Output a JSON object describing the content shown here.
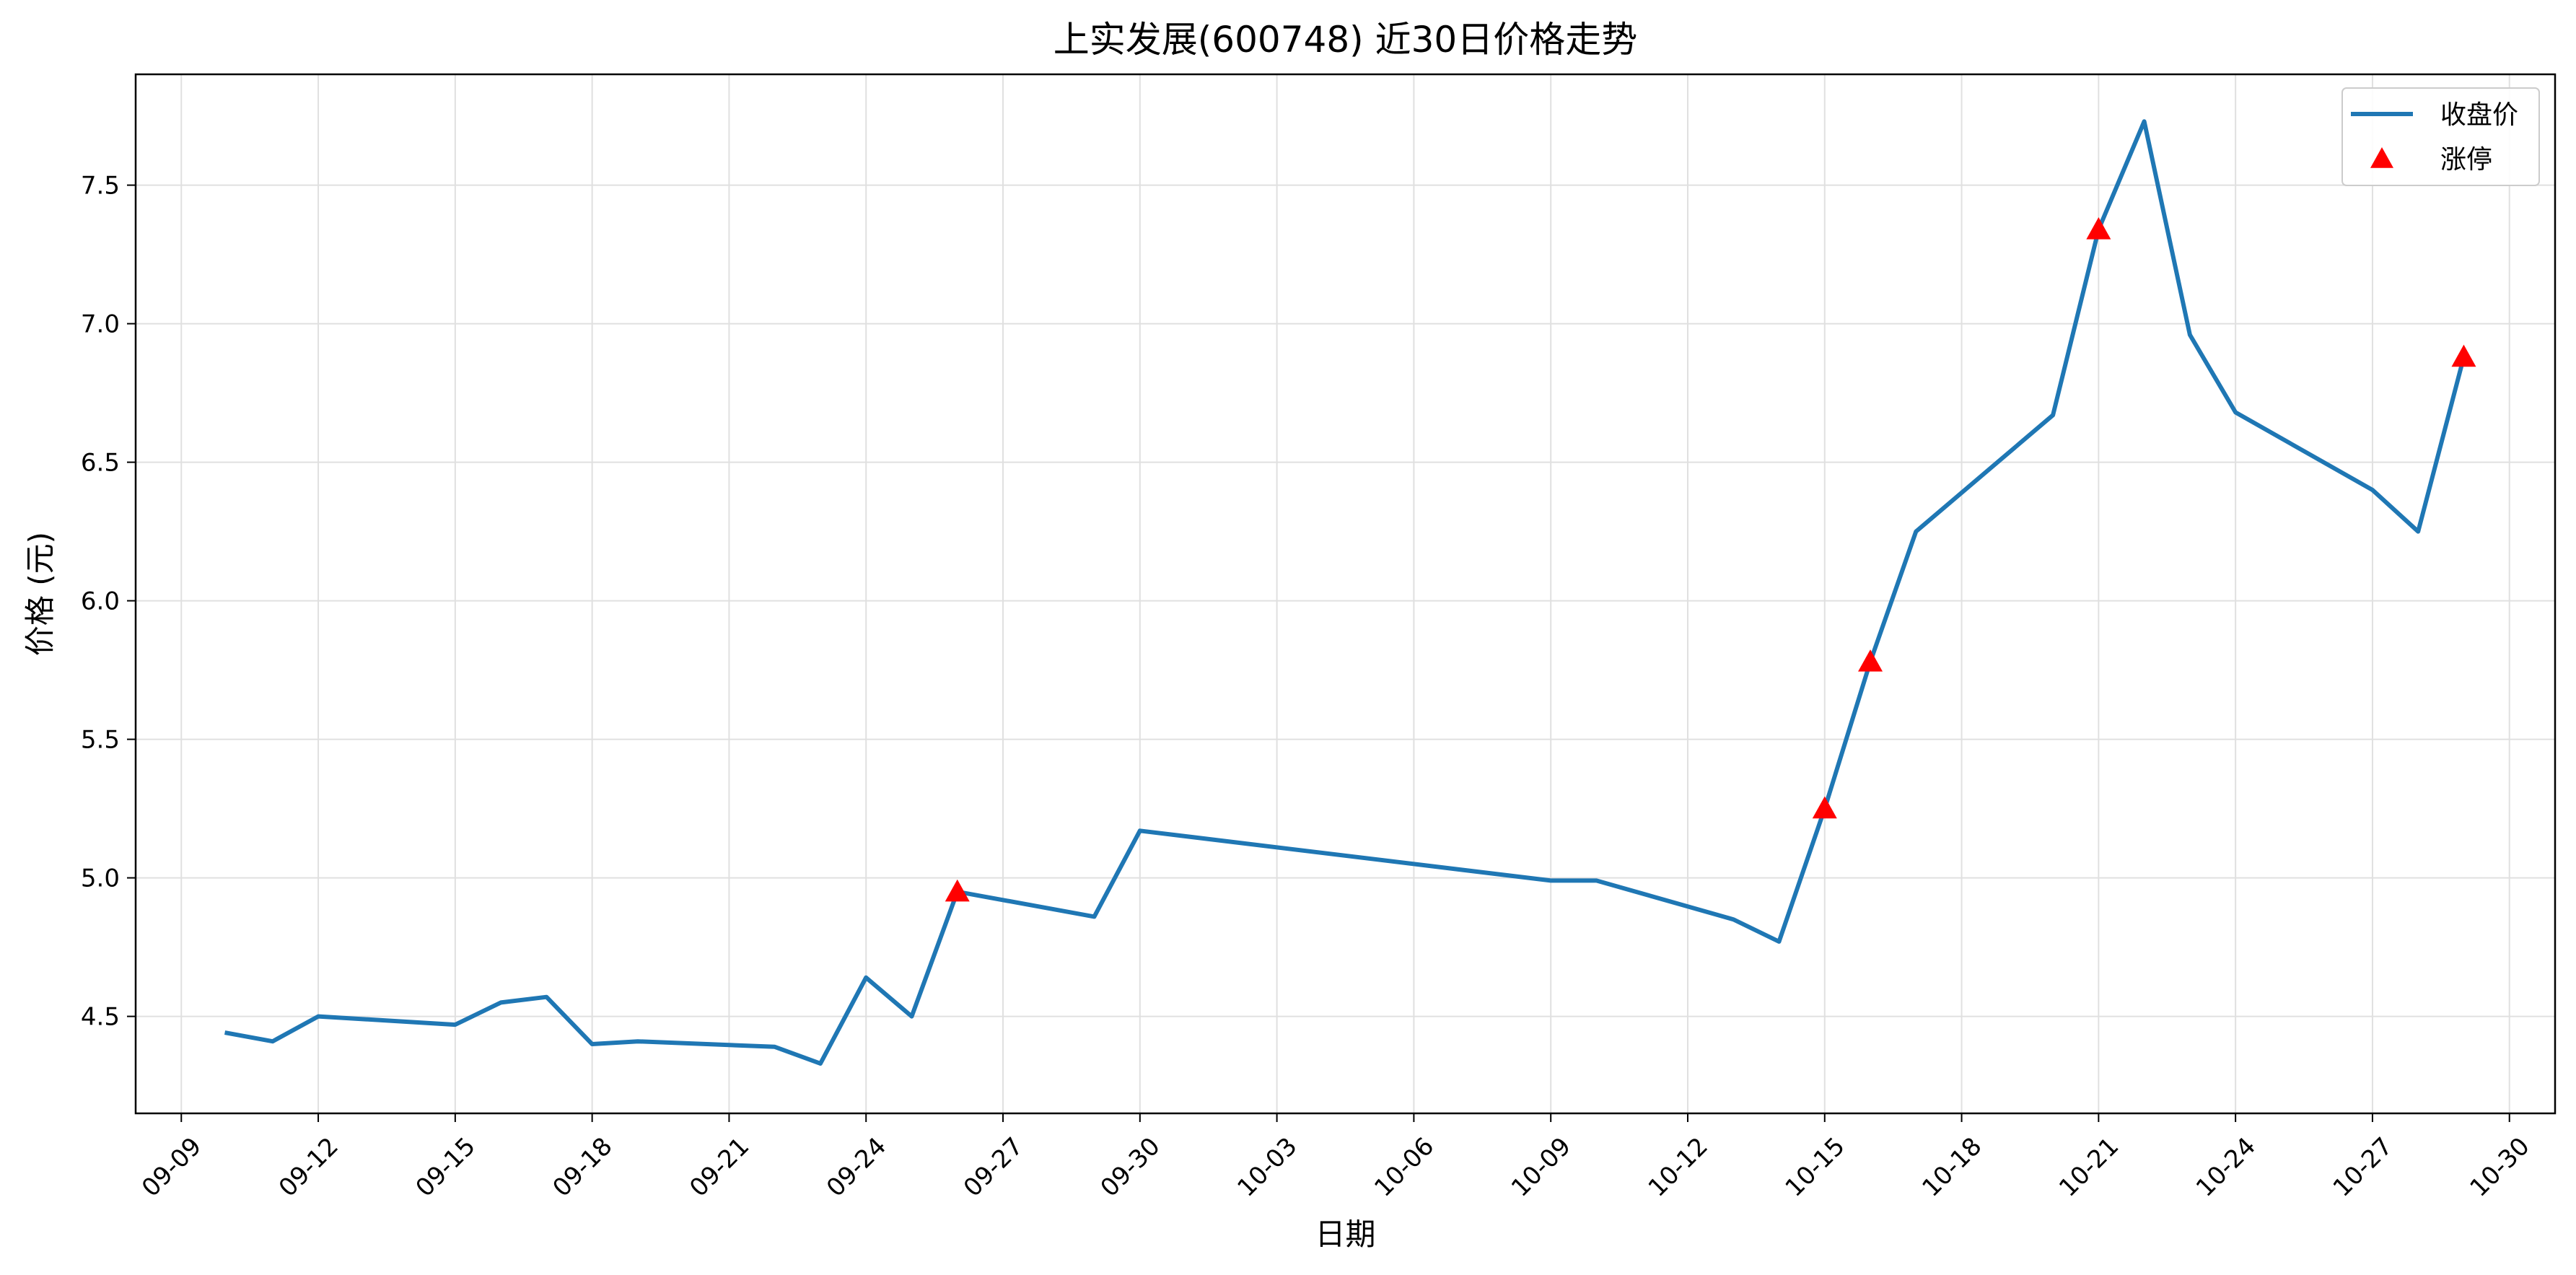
{
  "chart_data": {
    "type": "line",
    "title": "上实发展(600748) 近30日价格走势",
    "xlabel": "日期",
    "ylabel": "价格 (元)",
    "x_axis_type": "date",
    "xlim": [
      "2025-09-08",
      "2025-10-31"
    ],
    "ylim": [
      4.15,
      7.9
    ],
    "grid": true,
    "legend_position": "top-right",
    "x_ticks": [
      "09-09",
      "09-12",
      "09-15",
      "09-18",
      "09-21",
      "09-24",
      "09-27",
      "09-30",
      "10-03",
      "10-06",
      "10-09",
      "10-12",
      "10-15",
      "10-18",
      "10-21",
      "10-24",
      "10-27",
      "10-30"
    ],
    "y_ticks": [
      "4.5",
      "5.0",
      "5.5",
      "6.0",
      "6.5",
      "7.0",
      "7.5"
    ],
    "series": [
      {
        "name": "收盘价",
        "kind": "line",
        "color": "#1f77b4",
        "x": [
          "2025-09-10",
          "2025-09-11",
          "2025-09-12",
          "2025-09-15",
          "2025-09-16",
          "2025-09-17",
          "2025-09-18",
          "2025-09-19",
          "2025-09-22",
          "2025-09-23",
          "2025-09-24",
          "2025-09-25",
          "2025-09-26",
          "2025-09-29",
          "2025-09-30",
          "2025-10-09",
          "2025-10-10",
          "2025-10-13",
          "2025-10-14",
          "2025-10-15",
          "2025-10-16",
          "2025-10-17",
          "2025-10-20",
          "2025-10-21",
          "2025-10-22",
          "2025-10-23",
          "2025-10-24",
          "2025-10-27",
          "2025-10-28",
          "2025-10-29"
        ],
        "y": [
          4.44,
          4.41,
          4.5,
          4.47,
          4.55,
          4.57,
          4.4,
          4.41,
          4.39,
          4.33,
          4.64,
          4.5,
          4.95,
          4.86,
          5.17,
          4.99,
          4.99,
          4.85,
          4.77,
          5.25,
          5.78,
          6.25,
          6.67,
          7.34,
          7.73,
          6.96,
          6.68,
          6.4,
          6.25,
          6.88
        ]
      },
      {
        "name": "涨停",
        "kind": "scatter",
        "marker": "triangle",
        "color": "#ff0000",
        "x": [
          "2025-09-26",
          "2025-10-15",
          "2025-10-16",
          "2025-10-21",
          "2025-10-29"
        ],
        "y": [
          4.95,
          5.25,
          5.78,
          7.34,
          6.88
        ]
      }
    ]
  }
}
